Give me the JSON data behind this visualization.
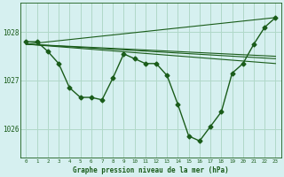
{
  "title": "Graphe pression niveau de la mer (hPa)",
  "background_color": "#d6f0f0",
  "grid_color": "#b0d8c8",
  "line_color": "#1a5c1a",
  "xlim": [
    -0.5,
    23.5
  ],
  "ylim": [
    1025.4,
    1028.6
  ],
  "yticks": [
    1026,
    1027,
    1028
  ],
  "xticks": [
    0,
    1,
    2,
    3,
    4,
    5,
    6,
    7,
    8,
    9,
    10,
    11,
    12,
    13,
    14,
    15,
    16,
    17,
    18,
    19,
    20,
    21,
    22,
    23
  ],
  "main_series": {
    "x": [
      0,
      1,
      2,
      3,
      4,
      5,
      6,
      7,
      8,
      9,
      10,
      11,
      12,
      13,
      14,
      15,
      16,
      17,
      18,
      19,
      20,
      21,
      22,
      23
    ],
    "y": [
      1027.8,
      1027.8,
      1027.6,
      1027.35,
      1026.85,
      1026.65,
      1026.65,
      1026.6,
      1027.05,
      1027.55,
      1027.45,
      1027.35,
      1027.35,
      1027.1,
      1026.5,
      1025.85,
      1025.75,
      1026.05,
      1026.35,
      1027.15,
      1027.35,
      1027.75,
      1028.1,
      1028.3
    ]
  },
  "smooth_lines": [
    {
      "x": [
        0,
        23
      ],
      "y": [
        1027.75,
        1027.45
      ]
    },
    {
      "x": [
        0,
        23
      ],
      "y": [
        1027.75,
        1027.5
      ]
    },
    {
      "x": [
        0,
        23
      ],
      "y": [
        1027.75,
        1028.3
      ]
    },
    {
      "x": [
        0,
        23
      ],
      "y": [
        1027.75,
        1027.35
      ]
    }
  ]
}
